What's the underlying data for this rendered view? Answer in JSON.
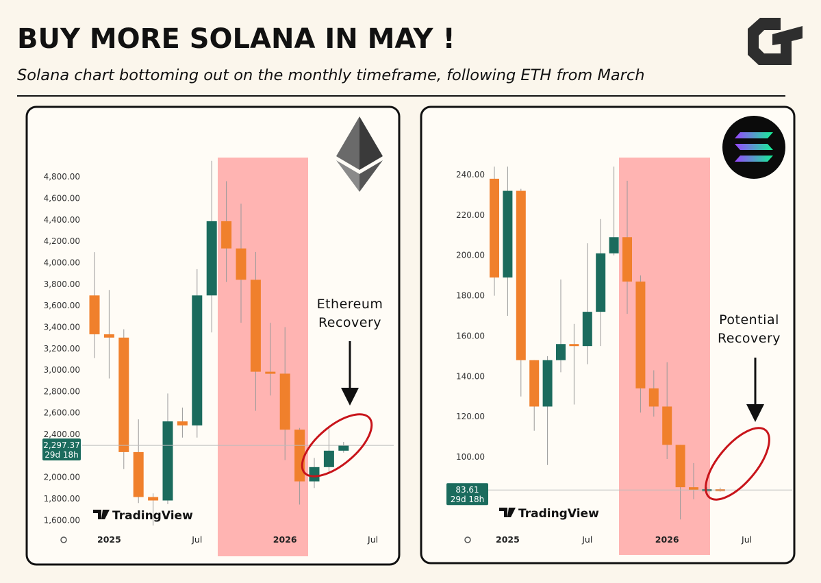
{
  "title": "BUY MORE SOLANA IN MAY !",
  "subtitle": "Solana chart bottoming out on the monthly timeframe, following ETH from March",
  "chart_data": [
    {
      "type": "candlestick",
      "annotation": [
        "Ethereum",
        "Recovery"
      ],
      "watermark": "TradingView",
      "categories": [
        null,
        "2025",
        null,
        null,
        null,
        null,
        null,
        "Jul",
        null,
        null,
        null,
        null,
        null,
        "2026",
        null,
        null,
        null,
        null,
        null,
        "Jul"
      ],
      "open": [
        3695,
        3333,
        3302,
        2235,
        1816,
        1784,
        2521,
        2483,
        3695,
        4387,
        4133,
        3841,
        2984,
        2966,
        2444,
        1962,
        2095,
        2248,
        null,
        null
      ],
      "high": [
        4098,
        3746,
        3380,
        2540,
        1850,
        2781,
        2650,
        3940,
        4950,
        4760,
        4550,
        4100,
        3440,
        3400,
        2460,
        2180,
        2457,
        2330,
        null,
        null
      ],
      "low": [
        3111,
        2921,
        2076,
        1760,
        1550,
        1750,
        2370,
        2370,
        3350,
        3820,
        3440,
        2620,
        2762,
        2160,
        1746,
        1900,
        2040,
        2230,
        null,
        null
      ],
      "close": [
        3333,
        3302,
        2235,
        1816,
        1784,
        2521,
        2483,
        3695,
        4387,
        4133,
        3841,
        2984,
        2966,
        2444,
        1962,
        2095,
        2248,
        2297.37,
        null,
        null
      ],
      "last_price": {
        "value": 2297.37,
        "label": "2,297.37"
      },
      "countdown": "29d 18h",
      "up_color": "#1b6b5d",
      "down_color": "#f0802c",
      "ylim": [
        1500,
        4980
      ],
      "yticks": [
        {
          "value": 1600,
          "label": "1,600.00"
        },
        {
          "value": 1800,
          "label": "1,800.00"
        },
        {
          "value": 2000,
          "label": "2,000.00"
        },
        {
          "value": 2200,
          "label": "2,200.00"
        },
        {
          "value": 2400,
          "label": "2,400.00"
        },
        {
          "value": 2600,
          "label": "2,600.00"
        },
        {
          "value": 2800,
          "label": "2,800.00"
        },
        {
          "value": 3000,
          "label": "3,000.00"
        },
        {
          "value": 3200,
          "label": "3,200.00"
        },
        {
          "value": 3400,
          "label": "3,400.00"
        },
        {
          "value": 3600,
          "label": "3,600.00"
        },
        {
          "value": 3800,
          "label": "3,800.00"
        },
        {
          "value": 4000,
          "label": "4,000.00"
        },
        {
          "value": 4200,
          "label": "4,200.00"
        },
        {
          "value": 4400,
          "label": "4,400.00"
        },
        {
          "value": 4600,
          "label": "4,600.00"
        },
        {
          "value": 4800,
          "label": "4,800.00"
        }
      ]
    },
    {
      "type": "candlestick",
      "annotation": [
        "Potential",
        "Recovery"
      ],
      "watermark": "TradingView",
      "categories": [
        null,
        "2025",
        null,
        null,
        null,
        null,
        null,
        "Jul",
        null,
        null,
        null,
        null,
        null,
        "2026",
        null,
        null,
        null,
        null,
        null,
        "Jul"
      ],
      "open": [
        238,
        189,
        232,
        148,
        125,
        148,
        156,
        155,
        172,
        201,
        209,
        187,
        134,
        125,
        106,
        85,
        83.5,
        84,
        null,
        null
      ],
      "high": [
        244,
        244,
        233,
        148,
        150,
        188,
        166,
        206,
        218,
        244,
        237,
        190,
        143,
        147,
        106,
        97,
        85,
        84.8,
        null,
        null
      ],
      "low": [
        180,
        170,
        130,
        113,
        96,
        142,
        126,
        146,
        155,
        200,
        171,
        122,
        120,
        99,
        69,
        79,
        82.5,
        82.8,
        null,
        null
      ],
      "close": [
        189,
        232,
        148,
        125,
        148,
        156,
        155,
        172,
        201,
        209,
        187,
        134,
        125,
        106,
        85,
        83.5,
        84,
        83.61,
        null,
        null
      ],
      "last_price": {
        "value": 83.61,
        "label": "83.61"
      },
      "countdown": "29d 18h",
      "up_color": "#1b6b5d",
      "down_color": "#f0802c",
      "ylim": [
        65,
        248.5
      ],
      "yticks": [
        {
          "value": 100,
          "label": "100.00"
        },
        {
          "value": 120,
          "label": "120.00"
        },
        {
          "value": 140,
          "label": "140.00"
        },
        {
          "value": 160,
          "label": "160.00"
        },
        {
          "value": 180,
          "label": "180.00"
        },
        {
          "value": 200,
          "label": "200.00"
        },
        {
          "value": 220,
          "label": "220.00"
        },
        {
          "value": 240,
          "label": "240.00"
        }
      ]
    }
  ]
}
